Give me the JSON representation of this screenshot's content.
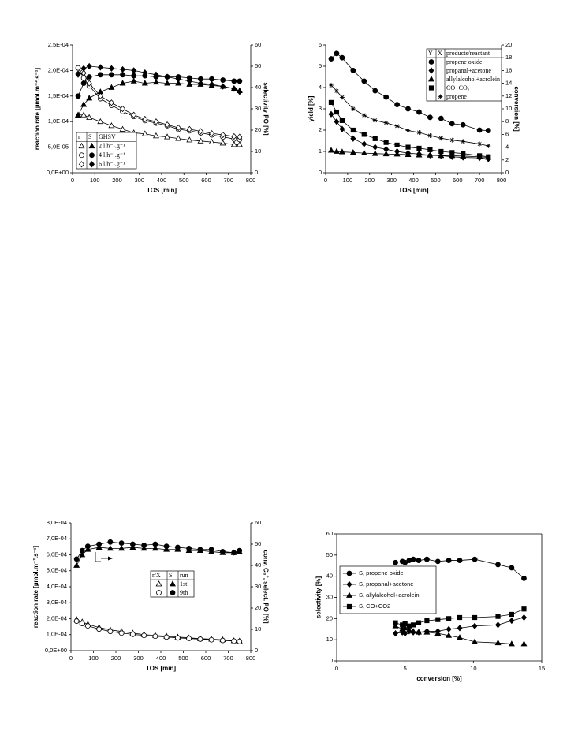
{
  "chart_data": [
    {
      "type": "line",
      "color": "#000000",
      "box": false,
      "legend_style": "table",
      "xlabel": "TOS [min]",
      "ylabel": "reaction rate [µmol.m⁻².s⁻¹]",
      "y2label": "selectivity PO [%]",
      "legend_headers": [
        "r",
        "S",
        "GHSV"
      ],
      "xlim": [
        0,
        800
      ],
      "xticks": [
        0,
        100,
        200,
        300,
        400,
        500,
        600,
        700,
        800
      ],
      "ylim": [
        0,
        0.00025
      ],
      "yticks": [
        {
          "value": 0,
          "label": "0,0E+00"
        },
        {
          "value": 5e-05,
          "label": "5,0E-05"
        },
        {
          "value": 0.0001,
          "label": "1,0E-04"
        },
        {
          "value": 0.00015,
          "label": "1,5E-04"
        },
        {
          "value": 0.0002,
          "label": "2,0E-04"
        },
        {
          "value": 0.00025,
          "label": "2,5E-04"
        }
      ],
      "y2lim": [
        0,
        60
      ],
      "y2ticks": [
        0,
        10,
        20,
        30,
        40,
        50,
        60
      ],
      "x": [
        25,
        50,
        75,
        125,
        175,
        225,
        275,
        325,
        375,
        425,
        475,
        525,
        575,
        625,
        675,
        725,
        750
      ],
      "series": [
        {
          "name": "2 l.h⁻¹.g⁻¹",
          "marker": "triangle",
          "filled": false,
          "axis": "y",
          "values": [
            0.000113,
            0.000113,
            0.000108,
            0.0001,
            9.2e-05,
            8.5e-05,
            7.8e-05,
            7.6e-05,
            7.2e-05,
            7e-05,
            6.7e-05,
            6.4e-05,
            6.2e-05,
            6e-05,
            5.8e-05,
            5.5e-05,
            5.5e-05
          ]
        },
        {
          "name": "2 l.h⁻¹.g⁻¹",
          "marker": "triangle",
          "filled": true,
          "axis": "y2",
          "values": [
            27,
            32,
            35,
            38,
            40,
            42,
            43,
            42,
            42.5,
            42,
            42,
            41.5,
            41.5,
            41,
            40.5,
            39.5,
            38.5
          ]
        },
        {
          "name": "4 l.h⁻¹.g⁻¹",
          "marker": "circle",
          "filled": false,
          "axis": "y",
          "values": [
            0.000205,
            0.000185,
            0.00017,
            0.000145,
            0.000132,
            0.00012,
            0.00011,
            0.000102,
            9.7e-05,
            9.2e-05,
            8.5e-05,
            8.2e-05,
            7.8e-05,
            7.4e-05,
            7e-05,
            6.6e-05,
            6.5e-05
          ]
        },
        {
          "name": "4 l.h⁻¹.g⁻¹",
          "marker": "circle",
          "filled": true,
          "axis": "y2",
          "values": [
            36,
            42,
            45,
            46,
            46,
            46,
            45.5,
            45.5,
            45,
            45,
            45,
            44.5,
            44,
            44,
            43.5,
            43,
            43
          ]
        },
        {
          "name": "6 l.h⁻¹.g⁻¹",
          "marker": "diamond",
          "filled": false,
          "axis": "y",
          "values": [
            0.000192,
            0.000195,
            0.000175,
            0.00015,
            0.000137,
            0.000125,
            0.000113,
            0.000105,
            0.0001,
            9.4e-05,
            8.8e-05,
            8.5e-05,
            8.1e-05,
            7.7e-05,
            7.4e-05,
            7.1e-05,
            7e-05
          ]
        },
        {
          "name": "6 l.h⁻¹.g⁻¹",
          "marker": "diamond",
          "filled": true,
          "axis": "y2",
          "values": [
            46.5,
            49,
            50,
            49.5,
            49,
            48.5,
            48,
            47,
            46,
            45,
            44,
            43,
            42,
            41.5,
            40.5,
            39.5,
            38
          ]
        }
      ]
    },
    {
      "type": "line",
      "color": "#000000",
      "box": false,
      "legend_style": "table",
      "xlabel": "TOS [min]",
      "ylabel": "yield [%]",
      "y2label": "conversion [%]",
      "legend_headers": [
        "Y",
        "X",
        "products/reactant"
      ],
      "xlim": [
        0,
        800
      ],
      "xticks": [
        0,
        100,
        200,
        300,
        400,
        500,
        600,
        700,
        800
      ],
      "ylim": [
        0,
        6
      ],
      "yticks": [
        0,
        1,
        2,
        3,
        4,
        5,
        6
      ],
      "y2lim": [
        0,
        20
      ],
      "y2ticks": [
        0,
        2,
        4,
        6,
        8,
        10,
        12,
        14,
        16,
        18,
        20
      ],
      "x": [
        25,
        50,
        75,
        125,
        175,
        225,
        275,
        325,
        375,
        425,
        475,
        525,
        575,
        625,
        700,
        740
      ],
      "series": [
        {
          "name": "propene oxide",
          "marker": "circle",
          "filled": true,
          "axis": "y",
          "values": [
            5.35,
            5.6,
            5.4,
            4.8,
            4.3,
            3.85,
            3.55,
            3.2,
            3.0,
            2.85,
            2.6,
            2.55,
            2.3,
            2.25,
            2.0,
            1.98
          ]
        },
        {
          "name": "propanal+acetone",
          "marker": "diamond",
          "filled": true,
          "axis": "y",
          "values": [
            2.75,
            2.4,
            2.05,
            1.6,
            1.35,
            1.2,
            1.1,
            1.0,
            0.92,
            0.88,
            0.82,
            0.8,
            0.75,
            0.72,
            0.7,
            0.65
          ]
        },
        {
          "name": "allylalcohol+acrolein",
          "marker": "triangle",
          "filled": true,
          "axis": "y",
          "values": [
            1.05,
            1.0,
            0.98,
            0.95,
            0.92,
            0.9,
            0.88,
            0.87,
            0.85,
            0.83,
            0.82,
            0.8,
            0.8,
            0.78,
            0.75,
            0.72
          ]
        },
        {
          "name": "CO+CO₂",
          "marker": "square",
          "filled": true,
          "axis": "y",
          "values": [
            3.3,
            2.85,
            2.45,
            2.0,
            1.8,
            1.6,
            1.42,
            1.3,
            1.2,
            1.15,
            1.08,
            1.0,
            0.95,
            0.9,
            0.8,
            0.75
          ]
        },
        {
          "name": "propene",
          "marker": "star",
          "filled": false,
          "axis": "y2",
          "values": [
            13.7,
            12.8,
            11.8,
            10.0,
            9.0,
            8.2,
            7.8,
            7.3,
            6.6,
            6.3,
            5.8,
            5.4,
            5.1,
            4.9,
            4.5,
            4.2
          ]
        }
      ]
    },
    {
      "type": "line",
      "color": "#000000",
      "box": false,
      "legend_style": "table",
      "xlabel": "TOS [min]",
      "ylabel": "reaction rate [µmol.m⁻².s⁻¹]",
      "y2label": "conv. C₃°, select. PO [%]",
      "legend_headers": [
        "r/X",
        "S",
        "run"
      ],
      "xlim": [
        0,
        800
      ],
      "xticks": [
        0,
        100,
        200,
        300,
        400,
        500,
        600,
        700,
        800
      ],
      "ylim": [
        0,
        0.0008
      ],
      "yticks": [
        {
          "value": 0,
          "label": "0,0E+00"
        },
        {
          "value": 0.0001,
          "label": "1,0E-04"
        },
        {
          "value": 0.0002,
          "label": "2,0E-04"
        },
        {
          "value": 0.0003,
          "label": "3,0E-04"
        },
        {
          "value": 0.0004,
          "label": "4,0E-04"
        },
        {
          "value": 0.0005,
          "label": "5,0E-04"
        },
        {
          "value": 0.0006,
          "label": "6,0E-04"
        },
        {
          "value": 0.0007,
          "label": "7,0E-04"
        },
        {
          "value": 0.0008,
          "label": "8,0E-04"
        }
      ],
      "y2lim": [
        0,
        60
      ],
      "y2ticks": [
        0,
        10,
        20,
        30,
        40,
        50,
        60
      ],
      "x": [
        25,
        50,
        75,
        125,
        175,
        225,
        275,
        325,
        375,
        425,
        475,
        525,
        575,
        625,
        675,
        725,
        750
      ],
      "series": [
        {
          "name": "1st",
          "marker": "triangle",
          "filled": false,
          "axis": "y",
          "values": [
            0.000195,
            0.00018,
            0.000165,
            0.000145,
            0.00013,
            0.00012,
            0.00011,
            0.0001,
            9.5e-05,
            9e-05,
            8.5e-05,
            8e-05,
            7.5e-05,
            7.2e-05,
            6.8e-05,
            6.2e-05,
            6e-05
          ]
        },
        {
          "name": "1st",
          "marker": "triangle",
          "filled": true,
          "axis": "y2",
          "values": [
            40,
            45,
            47.5,
            48.5,
            48,
            48,
            48.5,
            48,
            48,
            47.5,
            47.5,
            47,
            47,
            46.5,
            46,
            46,
            46.5
          ]
        },
        {
          "name": "9th",
          "marker": "circle",
          "filled": false,
          "axis": "y",
          "values": [
            0.000185,
            0.00017,
            0.000155,
            0.000135,
            0.00012,
            0.00011,
            0.000102,
            9.5e-05,
            9e-05,
            8.5e-05,
            8e-05,
            7.6e-05,
            7.2e-05,
            6.8e-05,
            6.4e-05,
            6e-05,
            5.8e-05
          ]
        },
        {
          "name": "9th",
          "marker": "circle",
          "filled": true,
          "axis": "y2",
          "values": [
            43,
            47,
            49,
            50,
            51,
            50.5,
            50,
            49.5,
            50,
            49,
            48.5,
            48,
            47.5,
            47.5,
            46.5,
            46,
            47
          ]
        }
      ]
    },
    {
      "type": "line",
      "color": "#000000",
      "box": true,
      "legend_style": "list",
      "xlabel": "conversion [%]",
      "ylabel": "selectivity [%]",
      "xlim": [
        0,
        15
      ],
      "xticks": [
        0,
        5,
        10,
        15
      ],
      "ylim": [
        0,
        60
      ],
      "yticks": [
        0,
        10,
        20,
        30,
        40,
        50,
        60
      ],
      "x": [
        4.3,
        4.8,
        5.0,
        5.3,
        5.6,
        6.0,
        6.6,
        7.4,
        8.2,
        9.0,
        10.1,
        11.8,
        12.8,
        13.7
      ],
      "series": [
        {
          "name": "S, propene oxide",
          "marker": "circle",
          "filled": true,
          "axis": "y",
          "values": [
            46.5,
            47,
            46.5,
            47.5,
            48,
            47.5,
            48,
            47,
            47.5,
            47.5,
            48,
            45.5,
            44,
            39
          ]
        },
        {
          "name": "S, propanal+acetone",
          "marker": "diamond",
          "filled": true,
          "axis": "y",
          "values": [
            13,
            13.5,
            13,
            14,
            13.5,
            13.5,
            14,
            14,
            15,
            15.5,
            16.5,
            17,
            19,
            20.5
          ]
        },
        {
          "name": "S, allylalcohol+acrolein",
          "marker": "triangle",
          "filled": true,
          "axis": "y",
          "values": [
            16.5,
            15,
            15.5,
            14.5,
            14,
            13.5,
            13.5,
            13,
            12,
            11,
            9,
            8.5,
            8,
            8
          ]
        },
        {
          "name": "S, CO+CO2",
          "marker": "square",
          "filled": true,
          "axis": "y",
          "values": [
            18,
            17,
            17.5,
            16.5,
            17,
            18,
            19,
            19.5,
            20,
            20.5,
            20.5,
            21,
            22,
            24.5
          ]
        }
      ]
    }
  ]
}
